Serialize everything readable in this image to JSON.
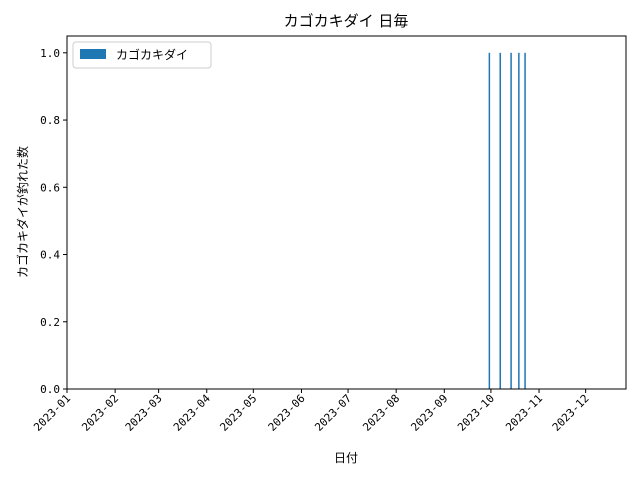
{
  "chart_data": {
    "type": "bar",
    "title": "カゴカキダイ 日毎",
    "xlabel": "日付",
    "ylabel": "カゴカキダイが釣れた数",
    "legend": {
      "entries": [
        "カゴカキダイ"
      ],
      "position": "top-left"
    },
    "color": "#1f77b4",
    "x_ticks": [
      "2023-01",
      "2023-02",
      "2023-03",
      "2023-04",
      "2023-05",
      "2023-06",
      "2023-07",
      "2023-08",
      "2023-09",
      "2023-10",
      "2023-11",
      "2023-12"
    ],
    "y_ticks": [
      "0.0",
      "0.2",
      "0.4",
      "0.6",
      "0.8",
      "1.0"
    ],
    "ylim": [
      0,
      1.05
    ],
    "xlim": [
      "2023-01-01",
      "2023-12-27"
    ],
    "grid": false,
    "points": [
      {
        "date": "2023-09-30",
        "value": 1
      },
      {
        "date": "2023-10-07",
        "value": 1
      },
      {
        "date": "2023-10-14",
        "value": 1
      },
      {
        "date": "2023-10-19",
        "value": 1
      },
      {
        "date": "2023-10-23",
        "value": 1
      }
    ]
  }
}
